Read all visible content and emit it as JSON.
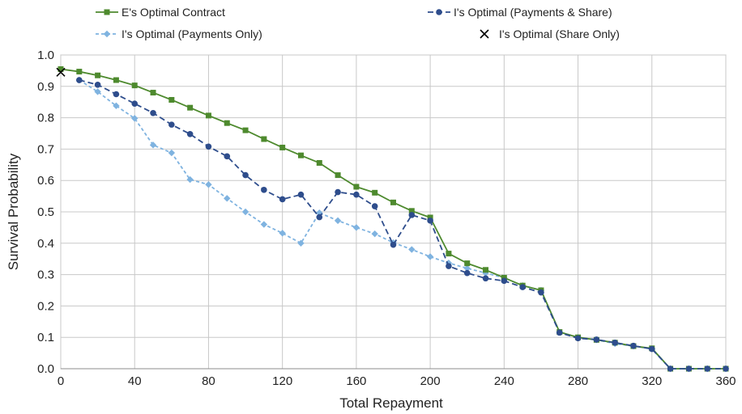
{
  "chart_data": {
    "type": "line",
    "title": "",
    "xlabel": "Total Repayment",
    "ylabel": "Survival Probability",
    "xlim": [
      0,
      360
    ],
    "ylim": [
      0.0,
      1.0
    ],
    "x_ticks": [
      "0",
      "40",
      "80",
      "120",
      "160",
      "200",
      "240",
      "280",
      "320",
      "360"
    ],
    "y_ticks": [
      "0.0",
      "0.1",
      "0.2",
      "0.3",
      "0.4",
      "0.5",
      "0.6",
      "0.7",
      "0.8",
      "0.9",
      "1.0"
    ],
    "grid": true,
    "legend_placement": "top",
    "series": [
      {
        "name": "E's Optimal Contract",
        "color": "#4e8a2e",
        "marker": "square",
        "line": "solid",
        "x": [
          0,
          10,
          20,
          30,
          40,
          50,
          60,
          70,
          80,
          90,
          100,
          110,
          120,
          130,
          140,
          150,
          160,
          170,
          180,
          190,
          200,
          210,
          220,
          230,
          240,
          250,
          260,
          270,
          280,
          290,
          300,
          310,
          320,
          330,
          340,
          350,
          360
        ],
        "values": [
          0.955,
          0.947,
          0.935,
          0.92,
          0.903,
          0.88,
          0.857,
          0.832,
          0.807,
          0.783,
          0.76,
          0.732,
          0.705,
          0.68,
          0.656,
          0.617,
          0.58,
          0.561,
          0.53,
          0.503,
          0.482,
          0.367,
          0.336,
          0.315,
          0.29,
          0.265,
          0.25,
          0.117,
          0.1,
          0.092,
          0.083,
          0.072,
          0.065,
          0.0,
          0.0,
          0.0,
          0.0
        ]
      },
      {
        "name": "I's Optimal (Payments & Share)",
        "color": "#2e4d8c",
        "marker": "circle",
        "line": "dashed",
        "x": [
          10,
          20,
          30,
          40,
          50,
          60,
          70,
          80,
          90,
          100,
          110,
          120,
          130,
          140,
          150,
          160,
          170,
          180,
          190,
          200,
          210,
          220,
          230,
          240,
          250,
          260,
          270,
          280,
          290,
          300,
          310,
          320,
          330,
          340,
          350,
          360
        ],
        "values": [
          0.92,
          0.905,
          0.875,
          0.845,
          0.815,
          0.778,
          0.748,
          0.708,
          0.677,
          0.617,
          0.57,
          0.54,
          0.555,
          0.483,
          0.563,
          0.555,
          0.518,
          0.395,
          0.49,
          0.472,
          0.327,
          0.305,
          0.288,
          0.28,
          0.26,
          0.243,
          0.115,
          0.097,
          0.093,
          0.083,
          0.073,
          0.063,
          0.0,
          0.0,
          0.0,
          0.0
        ]
      },
      {
        "name": "I's Optimal (Payments Only)",
        "color": "#7fb3e0",
        "marker": "diamond",
        "line": "dashed",
        "x": [
          10,
          20,
          30,
          40,
          50,
          60,
          70,
          80,
          90,
          100,
          110,
          120,
          130,
          140,
          150,
          160,
          170,
          180,
          190,
          200,
          210,
          220,
          230,
          240,
          250,
          260,
          270,
          280,
          290,
          300,
          310,
          320,
          330,
          340,
          350,
          360
        ],
        "values": [
          0.92,
          0.883,
          0.838,
          0.798,
          0.713,
          0.688,
          0.603,
          0.587,
          0.543,
          0.5,
          0.46,
          0.432,
          0.4,
          0.497,
          0.472,
          0.45,
          0.43,
          0.402,
          0.38,
          0.357,
          0.337,
          0.32,
          0.305,
          0.29,
          0.265,
          0.25,
          0.117,
          0.1,
          0.092,
          0.08,
          0.072,
          0.063,
          0.0,
          0.0,
          0.0,
          0.0
        ]
      },
      {
        "name": "I's Optimal (Share Only)",
        "color": "#000000",
        "marker": "x",
        "line": "none",
        "x": [
          0
        ],
        "values": [
          0.945
        ]
      }
    ]
  }
}
